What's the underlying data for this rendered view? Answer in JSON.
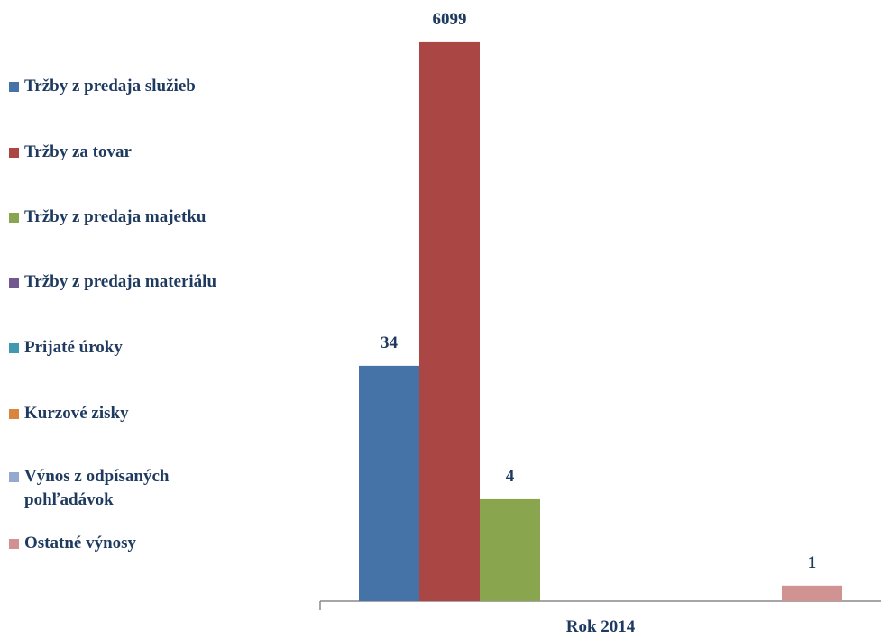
{
  "chart_data": {
    "type": "bar",
    "log_scale": true,
    "categories": [
      "Rok 2014"
    ],
    "series": [
      {
        "name": "Tržby z predaja služieb",
        "color": "#4572a7",
        "values": [
          34
        ]
      },
      {
        "name": "Tržby za tovar",
        "color": "#aa4643",
        "values": [
          6099
        ]
      },
      {
        "name": "Tržby z predaja majetku",
        "color": "#89a54e",
        "values": [
          4
        ]
      },
      {
        "name": "Tržby z predaja materiálu",
        "color": "#71588f",
        "values": [
          null
        ]
      },
      {
        "name": "Prijaté úroky",
        "color": "#4198af",
        "values": [
          null
        ]
      },
      {
        "name": "Kurzové zisky",
        "color": "#db843d",
        "values": [
          null
        ]
      },
      {
        "name": "Výnos z odpísaných pohľadávok",
        "color": "#93a9cf",
        "values": [
          null
        ]
      },
      {
        "name": "Ostatné výnosy",
        "color": "#d19392",
        "values": [
          1
        ]
      }
    ],
    "ylim": [
      0.78,
      9000
    ],
    "legend": "left"
  }
}
